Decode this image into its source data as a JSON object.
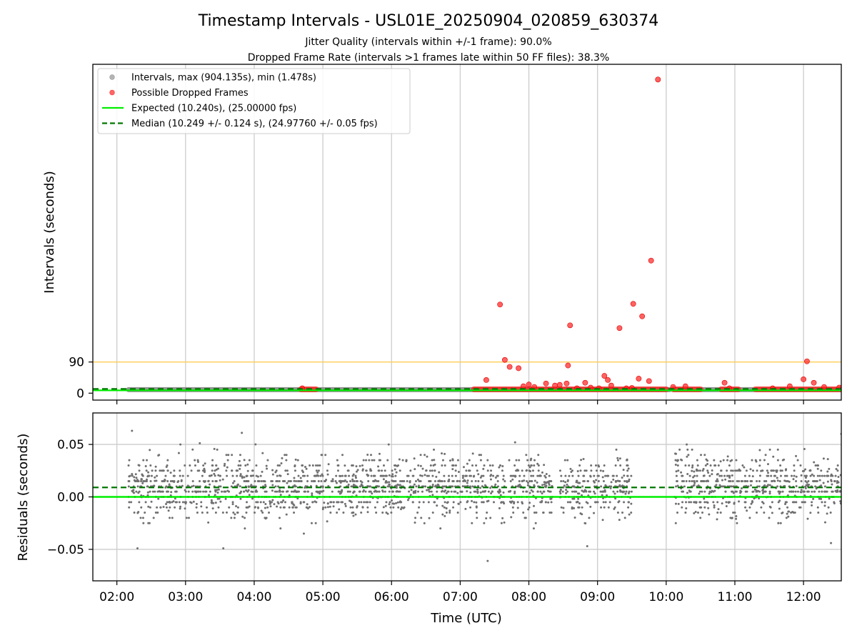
{
  "chart_data": [
    {
      "type": "scatter",
      "title": "Timestamp Intervals - USL01E_20250904_020859_630374",
      "subtitle_lines": [
        "Jitter Quality (intervals within +/-1 frame): 90.0%",
        "Dropped Frame Rate (intervals >1 frames late within 50 FF files): 38.3%"
      ],
      "ylabel": "Intervals (seconds)",
      "ylim": [
        -20,
        950
      ],
      "yticks": [
        0,
        90
      ],
      "ytick_labels": [
        "0",
        "90"
      ],
      "x_range_hours": [
        1.65,
        12.55
      ],
      "xticks_hours": [
        2,
        3,
        4,
        5,
        6,
        7,
        8,
        9,
        10,
        11,
        12
      ],
      "threshold_line": {
        "value": 90,
        "color": "#ffcc55"
      },
      "grid": "vertical",
      "legend": {
        "placement": "top-left",
        "entries": [
          {
            "label": "Intervals, max (904.135s), min (1.478s)",
            "marker": "dot",
            "color": "#999999"
          },
          {
            "label": "Possible Dropped Frames",
            "marker": "dot",
            "color": "#ff3333"
          },
          {
            "label": "Expected (10.240s), (25.00000 fps)",
            "marker": "solid-line",
            "color": "#00ee00"
          },
          {
            "label": "Median (10.249 +/- 0.124 s), (24.97760 +/- 0.05 fps)",
            "marker": "dashed-line",
            "color": "#007700"
          }
        ]
      },
      "series": [
        {
          "name": "Intervals, max (904.135s), min (1.478s)",
          "color": "#808080",
          "segments_hours": [
            [
              2.17,
              4.75
            ],
            [
              4.78,
              7.2
            ],
            [
              7.2,
              10.05
            ],
            [
              10.12,
              12.55
            ]
          ],
          "value": 10.249
        },
        {
          "name": "Possible Dropped Frames",
          "color": "#ff2020",
          "band_segments_hours": [
            [
              4.68,
              4.9
            ],
            [
              7.2,
              10.0
            ],
            [
              10.1,
              10.5
            ],
            [
              10.8,
              11.05
            ],
            [
              11.3,
              12.55
            ]
          ],
          "band_value": 11,
          "points": [
            [
              4.7,
              14
            ],
            [
              7.38,
              38
            ],
            [
              7.58,
              256
            ],
            [
              7.65,
              96
            ],
            [
              7.72,
              76
            ],
            [
              7.85,
              72
            ],
            [
              7.92,
              20
            ],
            [
              8.0,
              25
            ],
            [
              8.08,
              18
            ],
            [
              8.25,
              28
            ],
            [
              8.38,
              22
            ],
            [
              8.45,
              24
            ],
            [
              8.55,
              28
            ],
            [
              8.57,
              80
            ],
            [
              8.6,
              196
            ],
            [
              8.7,
              14
            ],
            [
              8.82,
              30
            ],
            [
              8.9,
              16
            ],
            [
              9.02,
              14
            ],
            [
              9.1,
              50
            ],
            [
              9.15,
              38
            ],
            [
              9.2,
              22
            ],
            [
              9.32,
              188
            ],
            [
              9.42,
              14
            ],
            [
              9.5,
              15
            ],
            [
              9.52,
              258
            ],
            [
              9.6,
              42
            ],
            [
              9.65,
              222
            ],
            [
              9.75,
              35
            ],
            [
              9.78,
              383
            ],
            [
              9.88,
              906
            ],
            [
              10.1,
              18
            ],
            [
              10.28,
              20
            ],
            [
              10.85,
              30
            ],
            [
              10.92,
              14
            ],
            [
              11.55,
              14
            ],
            [
              11.8,
              20
            ],
            [
              12.0,
              40
            ],
            [
              12.05,
              92
            ],
            [
              12.15,
              30
            ],
            [
              12.3,
              18
            ],
            [
              12.52,
              16
            ]
          ]
        },
        {
          "name": "Expected (10.240s), (25.00000 fps)",
          "type": "hline",
          "value": 10.24,
          "color": "#00ee00"
        },
        {
          "name": "Median (10.249 +/- 0.124 s), (24.97760 +/- 0.05 fps)",
          "type": "hline",
          "value": 10.249,
          "color": "#007700",
          "dashed": true
        }
      ]
    },
    {
      "type": "scatter",
      "xlabel": "Time (UTC)",
      "ylabel": "Residuals (seconds)",
      "ylim": [
        -0.08,
        0.08
      ],
      "yticks": [
        -0.05,
        0.0,
        0.05
      ],
      "ytick_labels": [
        "−0.05",
        "0.00",
        "0.05"
      ],
      "x_range_hours": [
        1.65,
        12.55
      ],
      "xticks_hours": [
        2,
        3,
        4,
        5,
        6,
        7,
        8,
        9,
        10,
        11,
        12
      ],
      "xtick_labels": [
        "02:00",
        "03:00",
        "04:00",
        "05:00",
        "06:00",
        "07:00",
        "08:00",
        "09:00",
        "10:00",
        "11:00",
        "12:00"
      ],
      "grid": "both",
      "series": [
        {
          "name": "Residuals",
          "color": "#707070",
          "distribution": {
            "center": 0.009,
            "spread": 0.02,
            "min": -0.062,
            "max": 0.065
          },
          "coverage_hours": [
            [
              2.17,
              7.65
            ],
            [
              7.7,
              8.35
            ],
            [
              8.45,
              9.5
            ],
            [
              10.12,
              12.55
            ]
          ],
          "extreme_points": [
            [
              2.22,
              0.063
            ],
            [
              2.3,
              -0.049
            ],
            [
              3.55,
              -0.049
            ],
            [
              7.4,
              -0.061
            ],
            [
              8.85,
              -0.047
            ],
            [
              12.4,
              -0.044
            ],
            [
              12.55,
              0.06
            ],
            [
              3.82,
              0.061
            ]
          ]
        },
        {
          "name": "Expected",
          "type": "hline",
          "value": 0.0,
          "color": "#00ee00"
        },
        {
          "name": "Median",
          "type": "hline",
          "value": 0.009,
          "color": "#007700",
          "dashed": true
        }
      ]
    }
  ]
}
